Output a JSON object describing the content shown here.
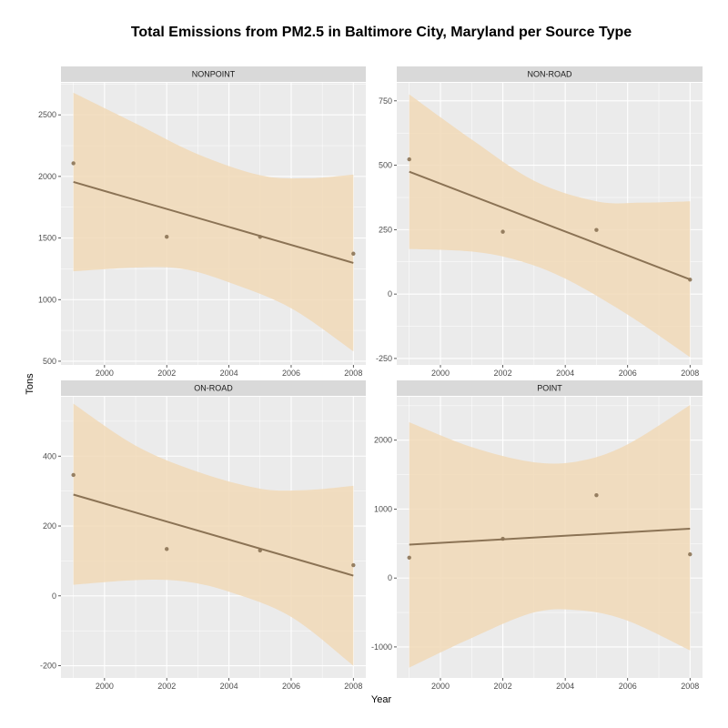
{
  "chart_data": {
    "type": "scatter",
    "title": "Total Emissions from PM2.5 in Baltimore City, Maryland per Source Type",
    "xlabel": "Year",
    "ylabel": "Tons",
    "x_ticks": [
      2000,
      2002,
      2004,
      2006,
      2008
    ],
    "xlim": [
      1998.6,
      2008.4
    ],
    "grid": true,
    "colors": {
      "panel_bg": "#ebebeb",
      "strip_bg": "#d9d9d9",
      "grid_major": "#ffffff",
      "ribbon": "#f1d9b7",
      "fit_line": "#8b7355",
      "points": "#8b7355"
    },
    "panels": [
      {
        "name": "NONPOINT",
        "x": [
          1999,
          2002,
          2005,
          2008
        ],
        "y": [
          2107,
          1510,
          1509,
          1373
        ],
        "fit": {
          "x": [
            1999,
            2008
          ],
          "y": [
            1955,
            1298
          ]
        },
        "band_upper": [
          [
            1999,
            2680
          ],
          [
            2001,
            2430
          ],
          [
            2003,
            2180
          ],
          [
            2005,
            2010
          ],
          [
            2006.5,
            1985
          ],
          [
            2008,
            2015
          ]
        ],
        "band_lower": [
          [
            1999,
            1230
          ],
          [
            2001,
            1260
          ],
          [
            2002.5,
            1250
          ],
          [
            2004,
            1140
          ],
          [
            2006,
            930
          ],
          [
            2008,
            580
          ]
        ],
        "ylim": [
          470,
          2760
        ],
        "y_ticks": [
          500,
          1000,
          1500,
          2000,
          2500
        ]
      },
      {
        "name": "NON-ROAD",
        "x": [
          1999,
          2002,
          2005,
          2008
        ],
        "y": [
          523,
          242,
          249,
          56
        ],
        "fit": {
          "x": [
            1999,
            2008
          ],
          "y": [
            475,
            57
          ]
        },
        "band_upper": [
          [
            1999,
            775
          ],
          [
            2001,
            600
          ],
          [
            2003,
            440
          ],
          [
            2005,
            360
          ],
          [
            2006.5,
            355
          ],
          [
            2008,
            360
          ]
        ],
        "band_lower": [
          [
            1999,
            175
          ],
          [
            2001,
            165
          ],
          [
            2002.5,
            130
          ],
          [
            2004,
            60
          ],
          [
            2006,
            -80
          ],
          [
            2008,
            -245
          ]
        ],
        "ylim": [
          -275,
          820
        ],
        "y_ticks": [
          -250,
          0,
          250,
          500,
          750
        ]
      },
      {
        "name": "ON-ROAD",
        "x": [
          1999,
          2002,
          2005,
          2008
        ],
        "y": [
          346,
          134,
          130,
          88
        ],
        "fit": {
          "x": [
            1999,
            2008
          ],
          "y": [
            290,
            58
          ]
        },
        "band_upper": [
          [
            1999,
            550
          ],
          [
            2001,
            430
          ],
          [
            2003,
            355
          ],
          [
            2005,
            307
          ],
          [
            2006.5,
            303
          ],
          [
            2008,
            315
          ]
        ],
        "band_lower": [
          [
            1999,
            32
          ],
          [
            2001,
            45
          ],
          [
            2002.5,
            42
          ],
          [
            2004,
            12
          ],
          [
            2006,
            -60
          ],
          [
            2008,
            -200
          ]
        ],
        "ylim": [
          -235,
          570
        ],
        "y_ticks": [
          -200,
          0,
          200,
          400
        ]
      },
      {
        "name": "POINT",
        "x": [
          1999,
          2002,
          2005,
          2008
        ],
        "y": [
          296,
          570,
          1202,
          344
        ],
        "fit": {
          "x": [
            1999,
            2008
          ],
          "y": [
            484,
            716
          ]
        },
        "band_upper": [
          [
            1999,
            2260
          ],
          [
            2001,
            1900
          ],
          [
            2003,
            1680
          ],
          [
            2004.5,
            1700
          ],
          [
            2006,
            1940
          ],
          [
            2008,
            2510
          ]
        ],
        "band_lower": [
          [
            1999,
            -1300
          ],
          [
            2001,
            -870
          ],
          [
            2003,
            -500
          ],
          [
            2004.5,
            -470
          ],
          [
            2006,
            -620
          ],
          [
            2008,
            -1050
          ]
        ],
        "ylim": [
          -1450,
          2630
        ],
        "y_ticks": [
          -1000,
          0,
          1000,
          2000
        ]
      }
    ]
  }
}
